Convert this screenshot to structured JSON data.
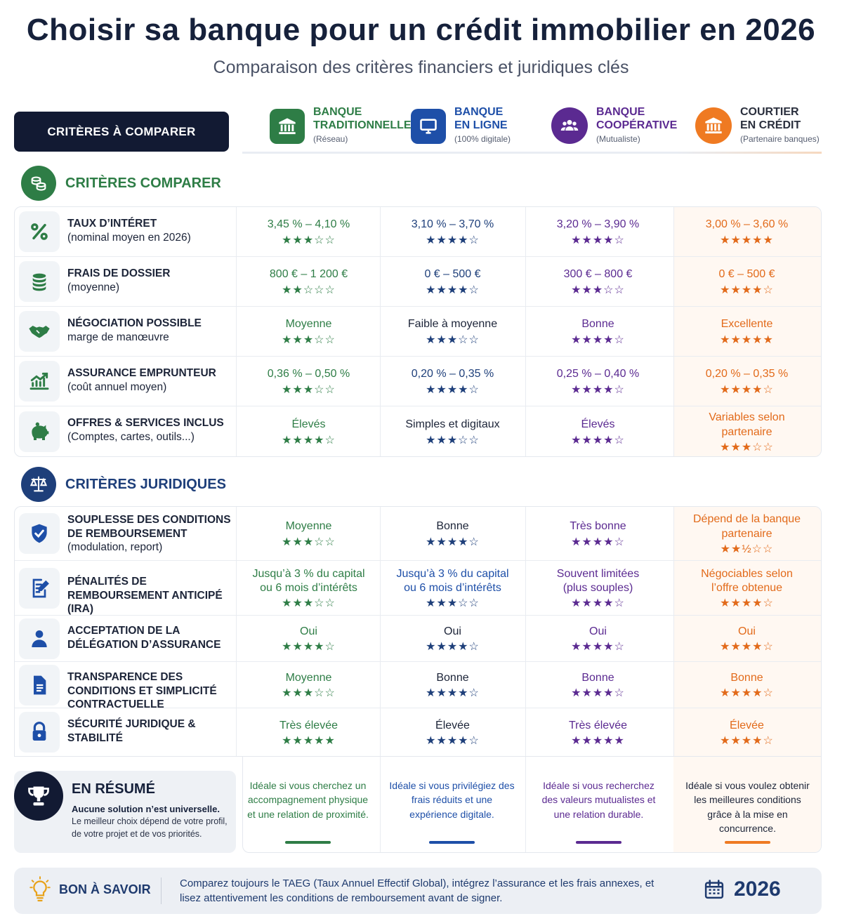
{
  "header": {
    "title": "Choisir sa banque pour un crédit immobilier en 2026",
    "subtitle": "Comparaison des critères financiers et juridiques clés"
  },
  "criteria_header": "CRITÈRES À COMPARER",
  "columns": [
    {
      "line1": "BANQUE",
      "line2": "TRADITIONNELLE",
      "sub": "(Réseau)",
      "icon": "bank-icon",
      "color": "#2e7d46"
    },
    {
      "line1": "BANQUE",
      "line2": "EN LIGNE",
      "sub": "(100% digitale)",
      "icon": "monitor-icon",
      "color": "#1e4fa8"
    },
    {
      "line1": "BANQUE",
      "line2": "COOPÉRATIVE",
      "sub": "(Mutualiste)",
      "icon": "people-icon",
      "color": "#5b2a91"
    },
    {
      "line1": "COURTIER",
      "line2": "EN CRÉDIT",
      "sub": "(Partenaire banques)",
      "icon": "bank-icon",
      "color": "#e26a1a"
    }
  ],
  "sections": {
    "financial": {
      "title": "CRITÈRES COMPARER",
      "rows": [
        {
          "label1": "TAUX D’INTÉRET",
          "label2": "(nominal moyen en 2026)",
          "icon": "percent-icon",
          "cells": [
            {
              "text": "3,45 % – 4,10 %",
              "stars": "★★★☆☆"
            },
            {
              "text": "3,10 % – 3,70 %",
              "stars": "★★★★☆"
            },
            {
              "text": "3,20 % – 3,90 %",
              "stars": "★★★★☆"
            },
            {
              "text": "3,00 % – 3,60 %",
              "stars": "★★★★★"
            }
          ]
        },
        {
          "label1": "FRAIS DE DOSSIER",
          "label2": "(moyenne)",
          "icon": "coins-icon",
          "cells": [
            {
              "text": "800 € – 1 200 €",
              "stars": "★★☆☆☆"
            },
            {
              "text": "0 € – 500 €",
              "stars": "★★★★☆"
            },
            {
              "text": "300 € – 800 €",
              "stars": "★★★☆☆"
            },
            {
              "text": "0 € – 500 €",
              "stars": "★★★★☆"
            }
          ]
        },
        {
          "label1": "NÉGOCIATION POSSIBLE",
          "label2": "marge de manœuvre",
          "icon": "handshake-icon",
          "cells": [
            {
              "text": "Moyenne",
              "stars": "★★★☆☆"
            },
            {
              "text": "Faible à moyenne",
              "stars": "★★★☆☆"
            },
            {
              "text": "Bonne",
              "stars": "★★★★☆"
            },
            {
              "text": "Excellente",
              "stars": "★★★★★"
            }
          ]
        },
        {
          "label1": "ASSURANCE EMPRUNTEUR",
          "label2": "(coût annuel moyen)",
          "icon": "chart-growth-icon",
          "cells": [
            {
              "text": "0,36 % – 0,50 %",
              "stars": "★★★☆☆"
            },
            {
              "text": "0,20 % – 0,35 %",
              "stars": "★★★★☆"
            },
            {
              "text": "0,25 % – 0,40 %",
              "stars": "★★★★☆"
            },
            {
              "text": "0,20 % – 0,35 %",
              "stars": "★★★★☆"
            }
          ]
        },
        {
          "label1": "OFFRES & SERVICES INCLUS",
          "label2": "(Comptes, cartes, outils...)",
          "icon": "piggy-bank-icon",
          "cells": [
            {
              "text": "Élevés",
              "stars": "★★★★☆"
            },
            {
              "text": "Simples et digitaux",
              "stars": "★★★☆☆"
            },
            {
              "text": "Élevés",
              "stars": "★★★★☆"
            },
            {
              "text": "Variables selon partenaire",
              "stars": "★★★☆☆"
            }
          ]
        }
      ]
    },
    "legal": {
      "title": "CRITÈRES JURIDIQUES",
      "rows": [
        {
          "label1": "SOUPLESSE DES CONDITIONS DE REMBOURSEMENT",
          "label2": "(modulation, report)",
          "icon": "shield-check-icon",
          "cells": [
            {
              "text": "Moyenne",
              "stars": "★★★☆☆"
            },
            {
              "text": "Bonne",
              "stars": "★★★★☆"
            },
            {
              "text": "Très bonne",
              "stars": "★★★★☆"
            },
            {
              "text": "Dépend de la banque partenaire",
              "stars": "★★½☆☆"
            }
          ]
        },
        {
          "label1": "PÉNALITÉS DE REMBOURSEMENT ANTICIPÉ (IRA)",
          "label2": "",
          "icon": "document-edit-icon",
          "cells": [
            {
              "text": "Jusqu’à 3 % du capital ou 6 mois d’intérêts",
              "stars": "★★★☆☆"
            },
            {
              "text": "Jusqu’à 3 % du capital ou 6 mois d’intérêts",
              "stars": "★★★☆☆"
            },
            {
              "text": "Souvent limitées (plus souples)",
              "stars": "★★★★☆"
            },
            {
              "text": "Négociables selon l’offre obtenue",
              "stars": "★★★★☆"
            }
          ]
        },
        {
          "label1": "ACCEPTATION DE LA DÉLÉGATION D’ASSURANCE",
          "label2": "",
          "icon": "person-icon",
          "cells": [
            {
              "text": "Oui",
              "stars": "★★★★☆"
            },
            {
              "text": "Oui",
              "stars": "★★★★☆"
            },
            {
              "text": "Oui",
              "stars": "★★★★☆"
            },
            {
              "text": "Oui",
              "stars": "★★★★☆"
            }
          ]
        },
        {
          "label1": "TRANSPARENCE DES CONDITIONS ET SIMPLICITÉ CONTRACTUELLE",
          "label2": "",
          "icon": "document-icon",
          "cells": [
            {
              "text": "Moyenne",
              "stars": "★★★☆☆"
            },
            {
              "text": "Bonne",
              "stars": "★★★★☆"
            },
            {
              "text": "Bonne",
              "stars": "★★★★☆"
            },
            {
              "text": "Bonne",
              "stars": "★★★★☆"
            }
          ]
        },
        {
          "label1": "SÉCURITÉ JURIDIQUE & STABILITÉ",
          "label2": "",
          "icon": "lock-icon",
          "cells": [
            {
              "text": "Très élevée",
              "stars": "★★★★★"
            },
            {
              "text": "Élevée",
              "stars": "★★★★☆"
            },
            {
              "text": "Très élevée",
              "stars": "★★★★★"
            },
            {
              "text": "Élevée",
              "stars": "★★★★☆"
            }
          ]
        }
      ]
    }
  },
  "summary": {
    "title": "EN RÉSUMÉ",
    "line1": "Aucune solution n’est universelle.",
    "line2": "Le meilleur choix dépend de votre profil, de votre projet et de vos priorités.",
    "cols": [
      "Idéale si vous cherchez un accompagnement physique et une relation de proximité.",
      "Idéale si vous privilégiez des frais réduits et une expérience digitale.",
      "Idéale si vous recherchez des valeurs mutualistes et une relation durable.",
      "Idéale si vous voulez obtenir les meilleures conditions grâce à la mise en concurrence."
    ]
  },
  "tip": {
    "label": "BON À SAVOIR",
    "text": "Comparez toujours le TAEG (Taux Annuel Effectif Global), intégrez l’assurance et les frais annexes, et lisez attentivement les conditions de remboursement avant de signer.",
    "year": "2026"
  }
}
